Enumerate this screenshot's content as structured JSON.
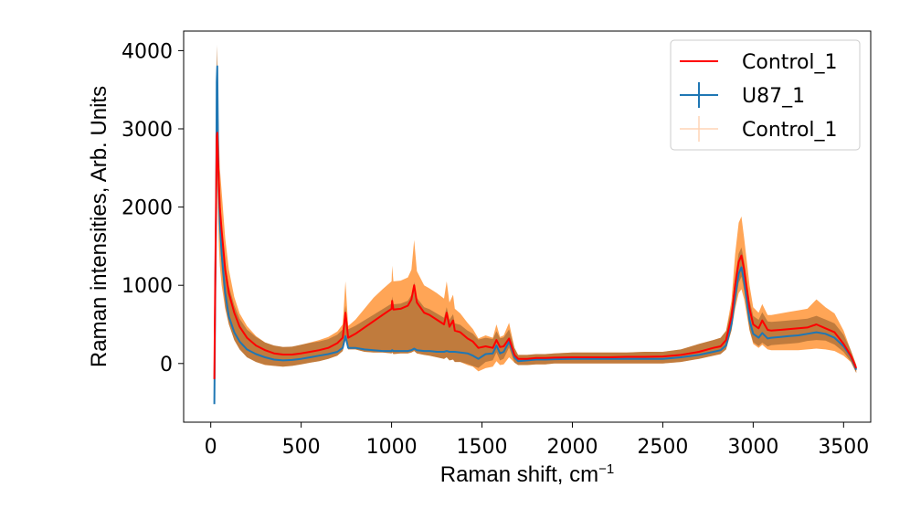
{
  "chart_data": {
    "type": "line",
    "title": "",
    "xlabel": "Raman shift, cm",
    "xlabel_superscript": "−1",
    "ylabel": "Raman intensities, Arb. Units",
    "xlim": [
      -150,
      3650
    ],
    "ylim": [
      -750,
      4250
    ],
    "xticks": [
      0,
      500,
      1000,
      1500,
      2000,
      2500,
      3000,
      3500
    ],
    "xtick_labels": [
      "0",
      "500",
      "1000",
      "1500",
      "2000",
      "2500",
      "3000",
      "3500"
    ],
    "yticks": [
      0,
      1000,
      2000,
      3000,
      4000
    ],
    "ytick_labels": [
      "0",
      "1000",
      "2000",
      "3000",
      "4000"
    ],
    "grid": false,
    "legend": {
      "placement": "top-right",
      "entries": [
        "Control_1",
        "U87_1",
        "Control_1"
      ]
    },
    "x": [
      20,
      25,
      30,
      33,
      36,
      40,
      45,
      50,
      60,
      80,
      100,
      130,
      160,
      200,
      250,
      300,
      350,
      400,
      450,
      500,
      550,
      600,
      650,
      700,
      730,
      745,
      760,
      800,
      850,
      900,
      950,
      1000,
      1003,
      1010,
      1050,
      1090,
      1110,
      1125,
      1140,
      1180,
      1210,
      1250,
      1290,
      1305,
      1320,
      1340,
      1350,
      1380,
      1420,
      1450,
      1480,
      1520,
      1560,
      1580,
      1600,
      1620,
      1650,
      1680,
      1700,
      1750,
      1800,
      1850,
      1900,
      2000,
      2100,
      2200,
      2300,
      2400,
      2500,
      2600,
      2700,
      2780,
      2820,
      2850,
      2880,
      2900,
      2920,
      2935,
      2950,
      2980,
      3000,
      3030,
      3050,
      3080,
      3100,
      3150,
      3200,
      3250,
      3300,
      3350,
      3400,
      3450,
      3500,
      3540,
      3570
    ],
    "series": [
      {
        "name": "Control_1",
        "color": "#ff0000",
        "values": [
          -200,
          1100,
          2200,
          2900,
          2950,
          2600,
          2300,
          2000,
          1700,
          1200,
          900,
          650,
          470,
          330,
          230,
          170,
          130,
          115,
          115,
          130,
          150,
          170,
          200,
          260,
          330,
          650,
          330,
          380,
          460,
          540,
          620,
          700,
          800,
          690,
          700,
          740,
          820,
          1000,
          780,
          650,
          620,
          560,
          500,
          650,
          470,
          550,
          420,
          400,
          320,
          280,
          200,
          220,
          200,
          300,
          210,
          220,
          320,
          110,
          60,
          60,
          70,
          70,
          75,
          80,
          80,
          80,
          85,
          85,
          90,
          110,
          150,
          200,
          220,
          300,
          600,
          1000,
          1300,
          1380,
          1200,
          700,
          500,
          450,
          550,
          430,
          420,
          430,
          440,
          450,
          460,
          500,
          450,
          400,
          250,
          100,
          -60
        ]
      },
      {
        "name": "U87_1",
        "color": "#1f77b4",
        "values": [
          -520,
          900,
          2000,
          3600,
          3800,
          2800,
          2200,
          1800,
          1400,
          900,
          600,
          400,
          280,
          180,
          120,
          80,
          50,
          40,
          45,
          60,
          80,
          100,
          120,
          150,
          200,
          350,
          200,
          200,
          180,
          170,
          160,
          160,
          170,
          160,
          160,
          160,
          170,
          190,
          170,
          160,
          160,
          150,
          150,
          160,
          150,
          150,
          150,
          140,
          130,
          100,
          60,
          120,
          130,
          230,
          130,
          150,
          280,
          80,
          30,
          40,
          50,
          50,
          55,
          60,
          60,
          60,
          60,
          60,
          60,
          80,
          110,
          150,
          170,
          230,
          500,
          850,
          1150,
          1230,
          1050,
          550,
          380,
          330,
          390,
          320,
          330,
          340,
          350,
          360,
          380,
          400,
          380,
          330,
          220,
          90,
          -80
        ]
      },
      {
        "name": "Control_1",
        "color": "#ff7f0e",
        "band_lower": [
          -400,
          700,
          1500,
          2100,
          2300,
          1900,
          1500,
          1250,
          1000,
          700,
          500,
          300,
          180,
          80,
          20,
          -20,
          -30,
          -40,
          -30,
          -10,
          10,
          30,
          60,
          100,
          160,
          300,
          180,
          180,
          150,
          140,
          140,
          130,
          140,
          120,
          130,
          130,
          140,
          160,
          130,
          110,
          100,
          80,
          60,
          80,
          40,
          50,
          20,
          20,
          -20,
          -40,
          -100,
          -60,
          -40,
          30,
          -20,
          -10,
          80,
          10,
          -20,
          -20,
          -10,
          -10,
          0,
          0,
          0,
          0,
          0,
          0,
          0,
          20,
          60,
          100,
          120,
          180,
          420,
          700,
          900,
          950,
          820,
          420,
          250,
          200,
          240,
          180,
          170,
          170,
          170,
          170,
          180,
          190,
          180,
          160,
          100,
          20,
          -120
        ],
        "band_upper": [
          300,
          1500,
          3000,
          3700,
          4050,
          3300,
          2900,
          2500,
          2200,
          1600,
          1200,
          850,
          640,
          480,
          350,
          270,
          230,
          210,
          215,
          240,
          270,
          300,
          340,
          410,
          500,
          1050,
          480,
          560,
          700,
          840,
          950,
          1050,
          1250,
          1050,
          1060,
          1100,
          1200,
          1580,
          1180,
          1000,
          960,
          900,
          830,
          1050,
          780,
          880,
          700,
          640,
          520,
          440,
          320,
          360,
          330,
          500,
          340,
          360,
          520,
          200,
          110,
          110,
          120,
          120,
          130,
          140,
          140,
          140,
          140,
          150,
          150,
          180,
          250,
          300,
          330,
          420,
          800,
          1400,
          1800,
          1880,
          1600,
          1000,
          720,
          650,
          760,
          620,
          620,
          640,
          660,
          680,
          700,
          820,
          720,
          640,
          420,
          170,
          -20
        ]
      }
    ]
  }
}
